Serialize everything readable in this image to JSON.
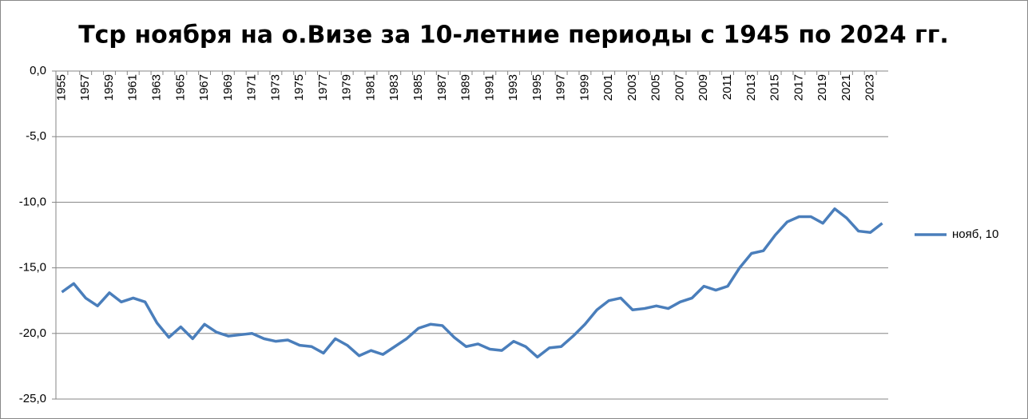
{
  "chart_data": {
    "type": "line",
    "title": "Тср ноября на о.Визе за 10-летние периоды с 1945 по 2024 гг.",
    "categories": [
      "1955",
      null,
      "1957",
      null,
      "1959",
      null,
      "1961",
      null,
      "1963",
      null,
      "1965",
      null,
      "1967",
      null,
      "1969",
      null,
      "1971",
      null,
      "1973",
      null,
      "1975",
      null,
      "1977",
      null,
      "1979",
      null,
      "1981",
      null,
      "1983",
      null,
      "1985",
      null,
      "1987",
      null,
      "1989",
      null,
      "1991",
      null,
      "1993",
      null,
      "1995",
      null,
      "1997",
      null,
      "1999",
      null,
      "2001",
      null,
      "2003",
      null,
      "2005",
      null,
      "2007",
      null,
      "2009",
      null,
      "2011",
      null,
      "2013",
      null,
      "2015",
      null,
      "2017",
      null,
      "2019",
      null,
      "2021",
      null,
      "2023",
      null
    ],
    "series": [
      {
        "name": "нояб, 10",
        "color": "#4a7ebb",
        "values": [
          -16.85,
          -16.2,
          -17.3,
          -17.9,
          -16.9,
          -17.6,
          -17.3,
          -17.6,
          -19.2,
          -20.3,
          -19.5,
          -20.4,
          -19.3,
          -19.9,
          -20.2,
          -20.1,
          -20.0,
          -20.4,
          -20.6,
          -20.5,
          -20.9,
          -21.0,
          -21.5,
          -20.4,
          -20.9,
          -21.7,
          -21.3,
          -21.6,
          -21.0,
          -20.4,
          -19.6,
          -19.3,
          -19.4,
          -20.3,
          -21.0,
          -20.8,
          -21.2,
          -21.3,
          -20.6,
          -21.0,
          -21.8,
          -21.1,
          -21.0,
          -20.2,
          -19.3,
          -18.2,
          -17.5,
          -17.3,
          -18.2,
          -18.1,
          -17.9,
          -18.1,
          -17.6,
          -17.3,
          -16.4,
          -16.7,
          -16.4,
          -15.0,
          -13.9,
          -13.7,
          -12.5,
          -11.5,
          -11.1,
          -11.1,
          -11.6,
          -10.5,
          -11.2,
          -12.2,
          -12.3,
          -11.6
        ]
      }
    ],
    "ylim": [
      -25,
      0
    ],
    "yticks": [
      {
        "value": 0,
        "label": "0,0"
      },
      {
        "value": -5,
        "label": "-5,0"
      },
      {
        "value": -10,
        "label": "-10,0"
      },
      {
        "value": -15,
        "label": "-15,0"
      },
      {
        "value": -20,
        "label": "-20,0"
      },
      {
        "value": -25,
        "label": "-25,0"
      }
    ],
    "grid": true,
    "legend": "right"
  }
}
